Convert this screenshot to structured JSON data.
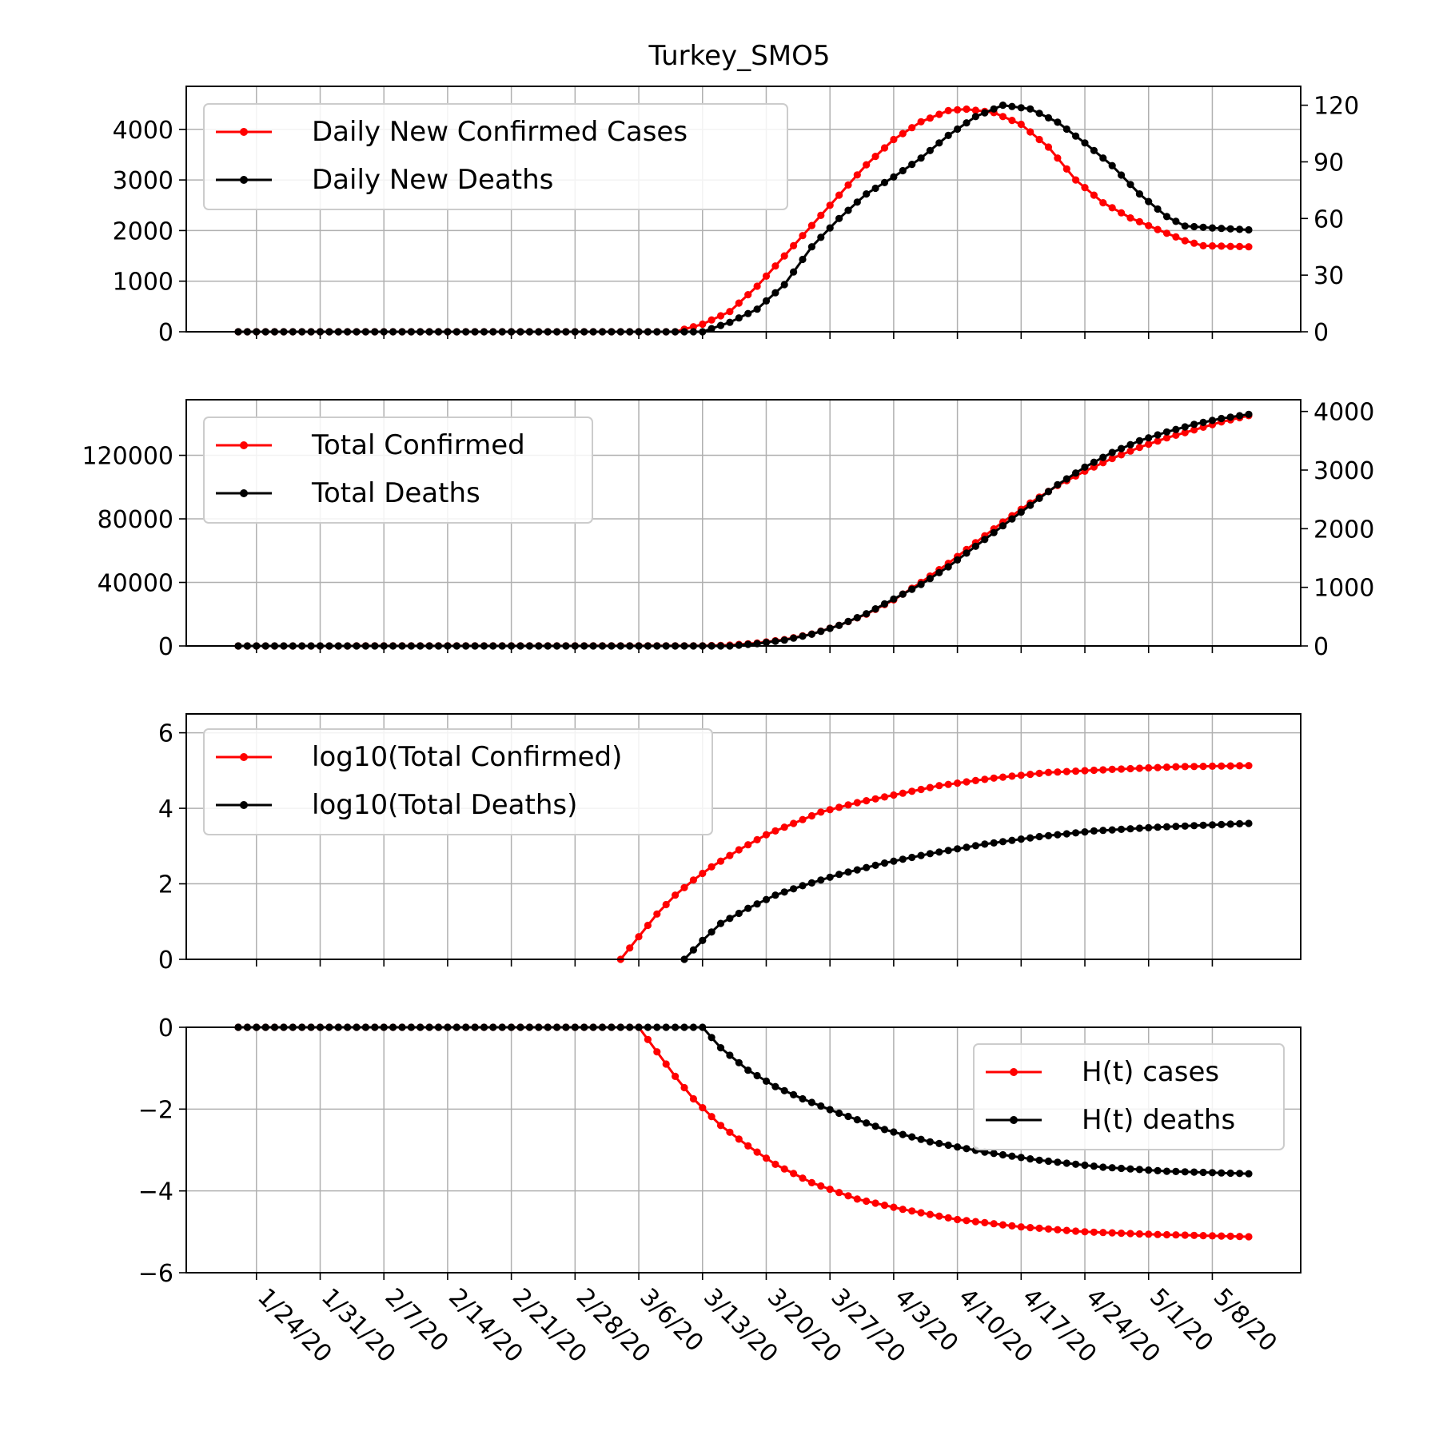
{
  "figure": {
    "title": "Turkey_SMO5"
  },
  "colors": {
    "cases": "#ff0000",
    "deaths": "#000000",
    "grid": "#b0b0b0",
    "axes": "#000000",
    "background": "#ffffff"
  },
  "chart_data": [
    {
      "type": "line",
      "panel": "daily",
      "x_start": "2020-01-22",
      "x_end": "2020-05-12",
      "ylim_left": [
        0,
        4850
      ],
      "yticks_left": [
        0,
        1000,
        2000,
        3000,
        4000
      ],
      "ylim_right": [
        0,
        130
      ],
      "yticks_right": [
        0,
        30,
        60,
        90,
        120
      ],
      "legend": "upper left",
      "grid": true,
      "series": [
        {
          "name": "Daily New Confirmed Cases",
          "axis": "left",
          "color": "#ff0000",
          "points": [
            [
              "2020-01-22",
              0
            ],
            [
              "2020-03-10",
              0
            ],
            [
              "2020-03-13",
              150
            ],
            [
              "2020-03-16",
              400
            ],
            [
              "2020-03-19",
              900
            ],
            [
              "2020-03-22",
              1500
            ],
            [
              "2020-03-25",
              2100
            ],
            [
              "2020-03-28",
              2700
            ],
            [
              "2020-03-31",
              3300
            ],
            [
              "2020-04-03",
              3800
            ],
            [
              "2020-04-06",
              4150
            ],
            [
              "2020-04-09",
              4370
            ],
            [
              "2020-04-11",
              4400
            ],
            [
              "2020-04-14",
              4330
            ],
            [
              "2020-04-17",
              4100
            ],
            [
              "2020-04-20",
              3650
            ],
            [
              "2020-04-23",
              3000
            ],
            [
              "2020-04-26",
              2550
            ],
            [
              "2020-04-29",
              2250
            ],
            [
              "2020-05-02",
              2020
            ],
            [
              "2020-05-05",
              1800
            ],
            [
              "2020-05-07",
              1700
            ],
            [
              "2020-05-12",
              1680
            ]
          ]
        },
        {
          "name": "Daily New Deaths",
          "axis": "right",
          "color": "#000000",
          "points": [
            [
              "2020-01-22",
              0
            ],
            [
              "2020-03-13",
              0
            ],
            [
              "2020-03-16",
              5
            ],
            [
              "2020-03-19",
              12
            ],
            [
              "2020-03-22",
              25
            ],
            [
              "2020-03-25",
              45
            ],
            [
              "2020-03-28",
              60
            ],
            [
              "2020-03-31",
              73
            ],
            [
              "2020-04-03",
              82
            ],
            [
              "2020-04-06",
              92
            ],
            [
              "2020-04-09",
              104
            ],
            [
              "2020-04-12",
              114
            ],
            [
              "2020-04-15",
              120
            ],
            [
              "2020-04-18",
              118
            ],
            [
              "2020-04-21",
              111
            ],
            [
              "2020-04-24",
              100
            ],
            [
              "2020-04-27",
              88
            ],
            [
              "2020-04-30",
              73
            ],
            [
              "2020-05-03",
              61
            ],
            [
              "2020-05-05",
              56
            ],
            [
              "2020-05-08",
              55
            ],
            [
              "2020-05-12",
              54
            ]
          ]
        }
      ]
    },
    {
      "type": "line",
      "panel": "total",
      "x_start": "2020-01-22",
      "x_end": "2020-05-12",
      "ylim_left": [
        0,
        155000
      ],
      "yticks_left": [
        0,
        40000,
        80000,
        120000
      ],
      "ylim_right": [
        0,
        4200
      ],
      "yticks_right": [
        0,
        1000,
        2000,
        3000,
        4000
      ],
      "legend": "upper left",
      "grid": true,
      "series": [
        {
          "name": "Total Confirmed",
          "axis": "left",
          "color": "#ff0000",
          "points": [
            [
              "2020-01-22",
              0
            ],
            [
              "2020-03-13",
              100
            ],
            [
              "2020-03-16",
              500
            ],
            [
              "2020-03-19",
              1800
            ],
            [
              "2020-03-22",
              4000
            ],
            [
              "2020-03-25",
              7500
            ],
            [
              "2020-03-28",
              13000
            ],
            [
              "2020-03-31",
              20000
            ],
            [
              "2020-04-03",
              29000
            ],
            [
              "2020-04-06",
              40000
            ],
            [
              "2020-04-09",
              52000
            ],
            [
              "2020-04-12",
              65000
            ],
            [
              "2020-04-15",
              78000
            ],
            [
              "2020-04-18",
              90000
            ],
            [
              "2020-04-21",
              101000
            ],
            [
              "2020-04-24",
              110000
            ],
            [
              "2020-04-27",
              118000
            ],
            [
              "2020-04-30",
              125000
            ],
            [
              "2020-05-03",
              131000
            ],
            [
              "2020-05-06",
              136000
            ],
            [
              "2020-05-09",
              141000
            ],
            [
              "2020-05-12",
              145000
            ]
          ]
        },
        {
          "name": "Total Deaths",
          "axis": "right",
          "color": "#000000",
          "points": [
            [
              "2020-01-22",
              0
            ],
            [
              "2020-03-16",
              0
            ],
            [
              "2020-03-19",
              40
            ],
            [
              "2020-03-22",
              100
            ],
            [
              "2020-03-25",
              200
            ],
            [
              "2020-03-28",
              350
            ],
            [
              "2020-03-31",
              550
            ],
            [
              "2020-04-03",
              800
            ],
            [
              "2020-04-06",
              1050
            ],
            [
              "2020-04-09",
              1350
            ],
            [
              "2020-04-12",
              1700
            ],
            [
              "2020-04-15",
              2050
            ],
            [
              "2020-04-18",
              2400
            ],
            [
              "2020-04-21",
              2750
            ],
            [
              "2020-04-24",
              3050
            ],
            [
              "2020-04-27",
              3300
            ],
            [
              "2020-04-30",
              3500
            ],
            [
              "2020-05-03",
              3650
            ],
            [
              "2020-05-06",
              3780
            ],
            [
              "2020-05-09",
              3880
            ],
            [
              "2020-05-12",
              3950
            ]
          ]
        }
      ]
    },
    {
      "type": "line",
      "panel": "log",
      "x_start": "2020-01-22",
      "x_end": "2020-05-12",
      "ylim": [
        0,
        6.5
      ],
      "yticks": [
        0,
        2,
        4,
        6
      ],
      "legend": "upper left",
      "grid": true,
      "series": [
        {
          "name": "log10(Total Confirmed)",
          "color": "#ff0000",
          "points": [
            [
              "2020-03-04",
              0.0
            ],
            [
              "2020-03-06",
              0.6
            ],
            [
              "2020-03-08",
              1.2
            ],
            [
              "2020-03-10",
              1.7
            ],
            [
              "2020-03-12",
              2.1
            ],
            [
              "2020-03-14",
              2.45
            ],
            [
              "2020-03-17",
              2.9
            ],
            [
              "2020-03-20",
              3.3
            ],
            [
              "2020-03-23",
              3.6
            ],
            [
              "2020-03-26",
              3.9
            ],
            [
              "2020-03-30",
              4.15
            ],
            [
              "2020-04-03",
              4.35
            ],
            [
              "2020-04-08",
              4.6
            ],
            [
              "2020-04-14",
              4.8
            ],
            [
              "2020-04-20",
              4.95
            ],
            [
              "2020-04-27",
              5.03
            ],
            [
              "2020-05-04",
              5.1
            ],
            [
              "2020-05-12",
              5.13
            ]
          ]
        },
        {
          "name": "log10(Total Deaths)",
          "color": "#000000",
          "points": [
            [
              "2020-03-11",
              0.0
            ],
            [
              "2020-03-13",
              0.5
            ],
            [
              "2020-03-15",
              0.95
            ],
            [
              "2020-03-18",
              1.35
            ],
            [
              "2020-03-21",
              1.7
            ],
            [
              "2020-03-24",
              1.95
            ],
            [
              "2020-03-28",
              2.25
            ],
            [
              "2020-04-02",
              2.55
            ],
            [
              "2020-04-07",
              2.8
            ],
            [
              "2020-04-13",
              3.05
            ],
            [
              "2020-04-19",
              3.25
            ],
            [
              "2020-04-25",
              3.4
            ],
            [
              "2020-05-02",
              3.5
            ],
            [
              "2020-05-12",
              3.6
            ]
          ]
        }
      ]
    },
    {
      "type": "line",
      "panel": "entropy",
      "x_start": "2020-01-22",
      "x_end": "2020-05-12",
      "ylim": [
        -6,
        0
      ],
      "yticks": [
        0,
        -2,
        -4,
        -6
      ],
      "ytick_labels": [
        "0",
        "−2",
        "−4",
        "−6"
      ],
      "legend": "center right",
      "grid": true,
      "series": [
        {
          "name": "H(t) cases",
          "color": "#ff0000",
          "points": [
            [
              "2020-01-22",
              0
            ],
            [
              "2020-03-06",
              0
            ],
            [
              "2020-03-08",
              -0.6
            ],
            [
              "2020-03-10",
              -1.2
            ],
            [
              "2020-03-12",
              -1.75
            ],
            [
              "2020-03-15",
              -2.4
            ],
            [
              "2020-03-18",
              -2.9
            ],
            [
              "2020-03-21",
              -3.35
            ],
            [
              "2020-03-25",
              -3.8
            ],
            [
              "2020-03-30",
              -4.2
            ],
            [
              "2020-04-04",
              -4.45
            ],
            [
              "2020-04-10",
              -4.7
            ],
            [
              "2020-04-17",
              -4.88
            ],
            [
              "2020-04-24",
              -5.0
            ],
            [
              "2020-05-01",
              -5.06
            ],
            [
              "2020-05-12",
              -5.12
            ]
          ]
        },
        {
          "name": "H(t) deaths",
          "color": "#000000",
          "points": [
            [
              "2020-01-22",
              0
            ],
            [
              "2020-03-13",
              0
            ],
            [
              "2020-03-15",
              -0.5
            ],
            [
              "2020-03-18",
              -1.05
            ],
            [
              "2020-03-21",
              -1.45
            ],
            [
              "2020-03-24",
              -1.75
            ],
            [
              "2020-03-28",
              -2.1
            ],
            [
              "2020-04-02",
              -2.5
            ],
            [
              "2020-04-07",
              -2.8
            ],
            [
              "2020-04-13",
              -3.05
            ],
            [
              "2020-04-19",
              -3.25
            ],
            [
              "2020-04-26",
              -3.42
            ],
            [
              "2020-05-03",
              -3.52
            ],
            [
              "2020-05-12",
              -3.58
            ]
          ]
        }
      ]
    }
  ],
  "x_axis": {
    "tick_labels": [
      "1/24/20",
      "1/31/20",
      "2/7/20",
      "2/14/20",
      "2/21/20",
      "2/28/20",
      "3/6/20",
      "3/13/20",
      "3/20/20",
      "3/27/20",
      "4/3/20",
      "4/10/20",
      "4/17/20",
      "4/24/20",
      "5/1/20",
      "5/8/20"
    ],
    "tick_dates": [
      "2020-01-24",
      "2020-01-31",
      "2020-02-07",
      "2020-02-14",
      "2020-02-21",
      "2020-02-28",
      "2020-03-06",
      "2020-03-13",
      "2020-03-20",
      "2020-03-27",
      "2020-04-03",
      "2020-04-10",
      "2020-04-17",
      "2020-04-24",
      "2020-05-01",
      "2020-05-08"
    ]
  }
}
